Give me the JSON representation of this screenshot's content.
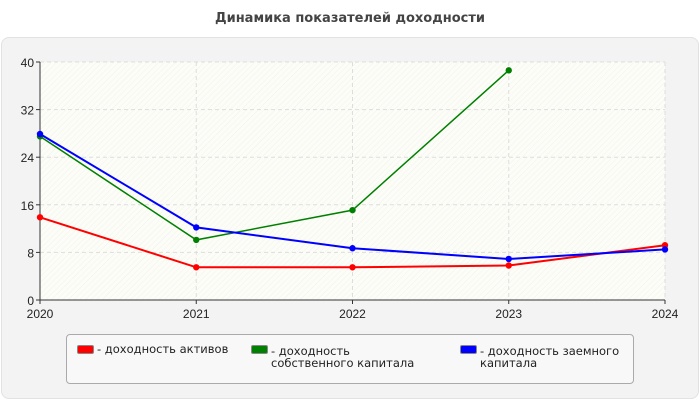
{
  "chart_data": {
    "type": "line",
    "title": "Динамика показателей доходности",
    "xlabel": "",
    "ylabel": "",
    "categories": [
      "2020",
      "2021",
      "2022",
      "2023",
      "2024"
    ],
    "ylim": [
      0,
      40
    ],
    "yticks": [
      "0",
      "8",
      "16",
      "24",
      "32",
      "40"
    ],
    "grid": true,
    "legend_position": "bottom",
    "series": [
      {
        "name": "- доходность активов",
        "color": "#ff0000",
        "values": [
          13.9,
          5.5,
          5.5,
          5.8,
          9.2
        ]
      },
      {
        "name": "- доходность собственного капитала",
        "color": "#008000",
        "values": [
          27.5,
          10.1,
          15.1,
          38.6,
          null
        ]
      },
      {
        "name": "- доходность заемного капитала",
        "color": "#0000ff",
        "values": [
          27.9,
          12.2,
          8.7,
          6.9,
          8.5
        ]
      }
    ]
  }
}
